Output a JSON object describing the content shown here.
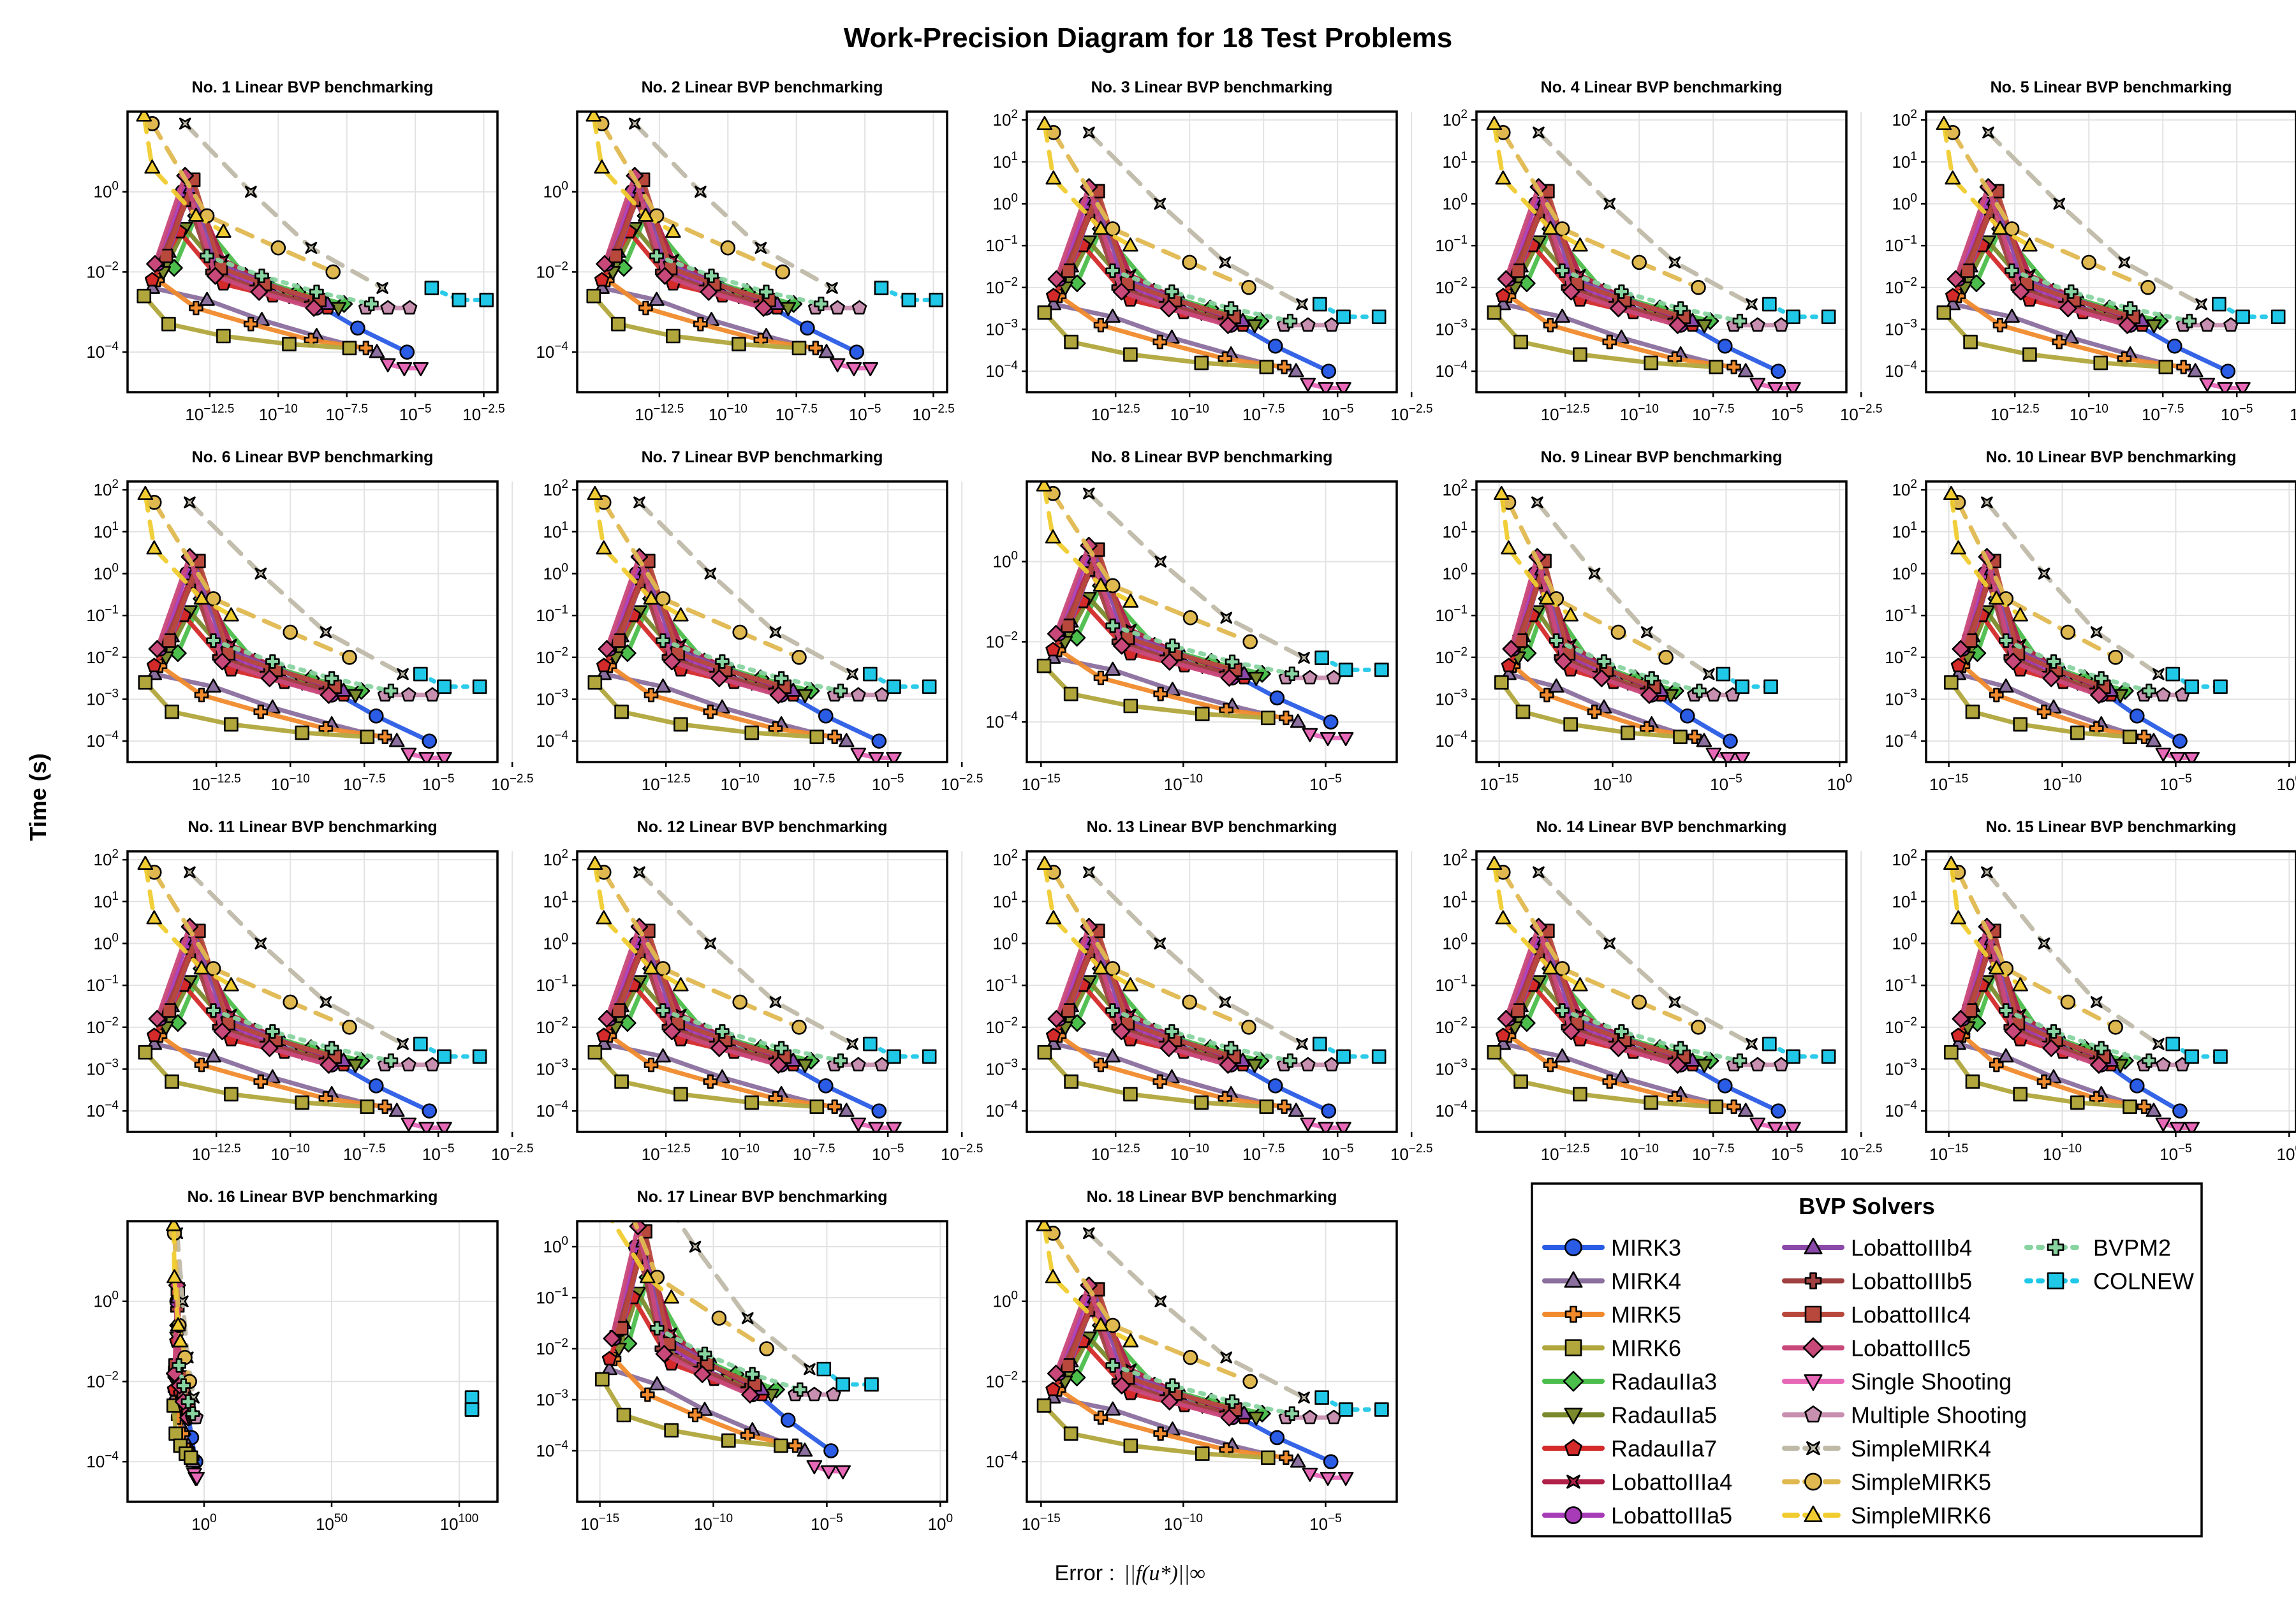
{
  "figure": {
    "title": "Work-Precision Diagram for 18 Test Problems",
    "ylabel": "Time (s)",
    "xlabel_prefix": "Error :",
    "xlabel_math": "||f(u*)||∞",
    "legend_title": "BVP Solvers"
  },
  "solvers": [
    {
      "name": "MIRK3",
      "color": "#2a5ce6",
      "marker": "circle",
      "dash": "solid"
    },
    {
      "name": "MIRK4",
      "color": "#8b6f9e",
      "marker": "triangle-up",
      "dash": "solid"
    },
    {
      "name": "MIRK5",
      "color": "#f08a2c",
      "marker": "cross",
      "dash": "solid"
    },
    {
      "name": "MIRK6",
      "color": "#b0a63c",
      "marker": "square",
      "dash": "solid"
    },
    {
      "name": "RadauIIa3",
      "color": "#4cbe4c",
      "marker": "diamond",
      "dash": "solid"
    },
    {
      "name": "RadauIIa5",
      "color": "#7a8a2c",
      "marker": "triangle-down",
      "dash": "solid"
    },
    {
      "name": "RadauIIa7",
      "color": "#d42a2a",
      "marker": "pentagon",
      "dash": "solid"
    },
    {
      "name": "LobattoIIIa4",
      "color": "#b02048",
      "marker": "xcross",
      "dash": "solid"
    },
    {
      "name": "LobattoIIIa5",
      "color": "#a83cb8",
      "marker": "circle",
      "dash": "solid"
    },
    {
      "name": "LobattoIIIb4",
      "color": "#8a48a8",
      "marker": "triangle-up",
      "dash": "solid"
    },
    {
      "name": "LobattoIIIb5",
      "color": "#a04040",
      "marker": "cross",
      "dash": "solid"
    },
    {
      "name": "LobattoIIIc4",
      "color": "#b8483c",
      "marker": "square",
      "dash": "solid"
    },
    {
      "name": "LobattoIIIc5",
      "color": "#c8487a",
      "marker": "diamond",
      "dash": "solid"
    },
    {
      "name": "Single Shooting",
      "color": "#e868b8",
      "marker": "triangle-down",
      "dash": "solid"
    },
    {
      "name": "Multiple Shooting",
      "color": "#c890b0",
      "marker": "pentagon",
      "dash": "solid"
    },
    {
      "name": "SimpleMIRK4",
      "color": "#bfb9a8",
      "marker": "xcross",
      "dash": "dashed"
    },
    {
      "name": "SimpleMIRK5",
      "color": "#e0b850",
      "marker": "circle",
      "dash": "dashed"
    },
    {
      "name": "SimpleMIRK6",
      "color": "#f0cc30",
      "marker": "triangle-up",
      "dash": "dashed"
    },
    {
      "name": "BVPM2",
      "color": "#88d4a0",
      "marker": "cross",
      "dash": "dotted"
    },
    {
      "name": "COLNEW",
      "color": "#20c8e8",
      "marker": "square",
      "dash": "dotted"
    }
  ],
  "panels": [
    {
      "title": "No. 1 Linear BVP benchmarking",
      "profile": "A"
    },
    {
      "title": "No. 2 Linear BVP benchmarking",
      "profile": "A"
    },
    {
      "title": "No. 3 Linear BVP benchmarking",
      "profile": "B"
    },
    {
      "title": "No. 4 Linear BVP benchmarking",
      "profile": "B"
    },
    {
      "title": "No. 5 Linear BVP benchmarking",
      "profile": "B"
    },
    {
      "title": "No. 6 Linear BVP benchmarking",
      "profile": "B"
    },
    {
      "title": "No. 7 Linear BVP benchmarking",
      "profile": "B"
    },
    {
      "title": "No. 8 Linear BVP benchmarking",
      "profile": "C"
    },
    {
      "title": "No. 9 Linear BVP benchmarking",
      "profile": "D"
    },
    {
      "title": "No. 10 Linear BVP benchmarking",
      "profile": "D"
    },
    {
      "title": "No. 11 Linear BVP benchmarking",
      "profile": "B"
    },
    {
      "title": "No. 12 Linear BVP benchmarking",
      "profile": "B"
    },
    {
      "title": "No. 13 Linear BVP benchmarking",
      "profile": "B"
    },
    {
      "title": "No. 14 Linear BVP benchmarking",
      "profile": "B"
    },
    {
      "title": "No. 15 Linear BVP benchmarking",
      "profile": "D"
    },
    {
      "title": "No. 16 Linear BVP benchmarking",
      "profile": "E"
    },
    {
      "title": "No. 17 Linear BVP benchmarking",
      "profile": "F"
    },
    {
      "title": "No. 18 Linear BVP benchmarking",
      "profile": "C"
    }
  ],
  "axis_profiles": {
    "A": {
      "xscale": "log10",
      "xlim": [
        -15.5,
        -2
      ],
      "xticks": [
        "10^-12.5",
        "10^-10.0",
        "10^-7.5",
        "10^-5.0",
        "10^-2.5"
      ],
      "xtick_exp": [
        -12.5,
        -10,
        -7.5,
        -5,
        -2.5
      ],
      "ylim": [
        -5,
        2
      ],
      "yticks": [
        "10^0",
        "10^-2",
        "10^-4"
      ],
      "ytick_exp": [
        0,
        -2,
        -4
      ]
    },
    "B": {
      "xscale": "log10",
      "xlim": [
        -15.5,
        -3
      ],
      "xticks": [
        "10^-12.5",
        "10^-10.0",
        "10^-7.5",
        "10^-5.0",
        "10^-2.5"
      ],
      "xtick_exp": [
        -12.5,
        -10,
        -7.5,
        -5,
        -2.5
      ],
      "ylim": [
        -4.5,
        2.2
      ],
      "yticks": [
        "10^2",
        "10^1",
        "10^0",
        "10^-1",
        "10^-2",
        "10^-3",
        "10^-4"
      ],
      "ytick_exp": [
        2,
        1,
        0,
        -1,
        -2,
        -3,
        -4
      ]
    },
    "C": {
      "xscale": "log10",
      "xlim": [
        -15.5,
        -2.5
      ],
      "xticks": [
        "10^-15",
        "10^-10",
        "10^-5"
      ],
      "xtick_exp": [
        -15,
        -10,
        -5
      ],
      "ylim": [
        -5,
        2
      ],
      "yticks": [
        "10^0",
        "10^-2",
        "10^-4"
      ],
      "ytick_exp": [
        0,
        -2,
        -4
      ]
    },
    "D": {
      "xscale": "log10",
      "xlim": [
        -16,
        0.3
      ],
      "xticks": [
        "10^-15",
        "10^-10",
        "10^-5",
        "10^0"
      ],
      "xtick_exp": [
        -15,
        -10,
        -5,
        0
      ],
      "ylim": [
        -4.5,
        2.2
      ],
      "yticks": [
        "10^2",
        "10^1",
        "10^0",
        "10^-1",
        "10^-2",
        "10^-3",
        "10^-4"
      ],
      "ytick_exp": [
        2,
        1,
        0,
        -1,
        -2,
        -3,
        -4
      ]
    },
    "E": {
      "xscale": "log10",
      "xlim": [
        -30,
        115
      ],
      "xticks": [
        "10^0",
        "10^50",
        "10^100"
      ],
      "xtick_exp": [
        0,
        50,
        100
      ],
      "ylim": [
        -5,
        2
      ],
      "yticks": [
        "10^0",
        "10^-2",
        "10^-4"
      ],
      "ytick_exp": [
        0,
        -2,
        -4
      ]
    },
    "F": {
      "xscale": "log10",
      "xlim": [
        -16,
        0.3
      ],
      "xticks": [
        "10^-15",
        "10^-10",
        "10^-5",
        "10^0"
      ],
      "xtick_exp": [
        -15,
        -10,
        -5,
        0
      ],
      "ylim": [
        -5,
        0.5
      ],
      "yticks": [
        "10^0",
        "10^-1",
        "10^-2",
        "10^-3",
        "10^-4"
      ],
      "ytick_exp": [
        0,
        -1,
        -2,
        -3,
        -4
      ]
    }
  },
  "chart_data": {
    "type": "line",
    "xscale": "log",
    "yscale": "log",
    "xlabel": "Error : ||f(u*)||∞",
    "ylabel": "Time (s)",
    "title": "Work-Precision Diagram for 18 Test Problems",
    "legend_position": "bottom-right",
    "grid": true,
    "note_units": "x and y given as log10 exponents of error and time",
    "series_template": [
      {
        "name": "MIRK3",
        "x": [
          -11.8,
          -10.4,
          -8.6,
          -7.1,
          -5.3
        ],
        "y": [
          -2.0,
          -2.3,
          -2.8,
          -3.4,
          -4.0
        ]
      },
      {
        "name": "MIRK4",
        "x": [
          -14.6,
          -12.6,
          -10.6,
          -8.6,
          -6.4
        ],
        "y": [
          -2.4,
          -2.7,
          -3.2,
          -3.6,
          -4.0
        ]
      },
      {
        "name": "MIRK5",
        "x": [
          -14.4,
          -13.0,
          -11.0,
          -8.8,
          -6.8
        ],
        "y": [
          -2.2,
          -2.9,
          -3.3,
          -3.7,
          -3.9
        ]
      },
      {
        "name": "MIRK6",
        "x": [
          -14.9,
          -14.0,
          -12.0,
          -9.6,
          -7.4
        ],
        "y": [
          -2.6,
          -3.3,
          -3.6,
          -3.8,
          -3.9
        ]
      },
      {
        "name": "RadauIIa3",
        "x": [
          -13.8,
          -13.0,
          -11.2,
          -9.3,
          -7.6
        ],
        "y": [
          -1.9,
          -0.6,
          -2.1,
          -2.5,
          -2.8
        ]
      },
      {
        "name": "RadauIIa5",
        "x": [
          -14.2,
          -13.4,
          -11.8,
          -9.6,
          -7.8
        ],
        "y": [
          -2.0,
          -0.9,
          -2.2,
          -2.6,
          -2.9
        ]
      },
      {
        "name": "RadauIIa7",
        "x": [
          -14.6,
          -13.6,
          -12.0,
          -10.2,
          -8.2
        ],
        "y": [
          -2.2,
          -1.0,
          -2.3,
          -2.6,
          -2.9
        ]
      },
      {
        "name": "LobattoIIIa4",
        "x": [
          -14.2,
          -13.2,
          -12.0,
          -10.4,
          -8.4
        ],
        "y": [
          -1.6,
          0.2,
          -1.7,
          -2.3,
          -2.8
        ]
      },
      {
        "name": "LobattoIIIa5",
        "x": [
          -14.4,
          -13.5,
          -12.2,
          -10.6,
          -8.6
        ],
        "y": [
          -1.8,
          0.0,
          -1.9,
          -2.4,
          -2.9
        ]
      },
      {
        "name": "LobattoIIIb4",
        "x": [
          -14.0,
          -13.2,
          -12.2,
          -10.4,
          -8.2
        ],
        "y": [
          -1.5,
          0.1,
          -1.8,
          -2.3,
          -2.8
        ]
      },
      {
        "name": "LobattoIIIb5",
        "x": [
          -14.3,
          -13.3,
          -12.4,
          -10.8,
          -8.8
        ],
        "y": [
          -1.7,
          -0.2,
          -2.0,
          -2.4,
          -2.8
        ]
      },
      {
        "name": "LobattoIIIc4",
        "x": [
          -14.1,
          -13.1,
          -12.1,
          -10.5,
          -8.5
        ],
        "y": [
          -1.6,
          0.3,
          -1.9,
          -2.3,
          -2.7
        ]
      },
      {
        "name": "LobattoIIIc5",
        "x": [
          -14.5,
          -13.4,
          -12.3,
          -10.7,
          -8.7
        ],
        "y": [
          -1.8,
          0.4,
          -2.1,
          -2.5,
          -2.9
        ]
      },
      {
        "name": "Single Shooting",
        "x": [
          -6.0,
          -5.4,
          -4.8
        ],
        "y": [
          -4.3,
          -4.4,
          -4.4
        ]
      },
      {
        "name": "Multiple Shooting",
        "x": [
          -6.8,
          -6.0,
          -5.2
        ],
        "y": [
          -2.9,
          -2.9,
          -2.9
        ]
      },
      {
        "name": "SimpleMIRK4",
        "x": [
          -13.4,
          -11.0,
          -8.8,
          -6.2
        ],
        "y": [
          1.7,
          0.0,
          -1.4,
          -2.4
        ]
      },
      {
        "name": "SimpleMIRK5",
        "x": [
          -14.6,
          -12.6,
          -10.0,
          -8.0
        ],
        "y": [
          1.7,
          -0.6,
          -1.4,
          -2.0
        ]
      },
      {
        "name": "SimpleMIRK6",
        "x": [
          -14.9,
          -14.6,
          -13.0,
          -12.0
        ],
        "y": [
          1.9,
          0.6,
          -0.6,
          -1.0
        ]
      },
      {
        "name": "BVPM2",
        "x": [
          -12.6,
          -10.6,
          -8.6,
          -6.6
        ],
        "y": [
          -1.6,
          -2.1,
          -2.5,
          -2.8
        ]
      },
      {
        "name": "COLNEW",
        "x": [
          -5.6,
          -4.8,
          -3.6
        ],
        "y": [
          -2.4,
          -2.7,
          -2.7
        ]
      }
    ]
  }
}
